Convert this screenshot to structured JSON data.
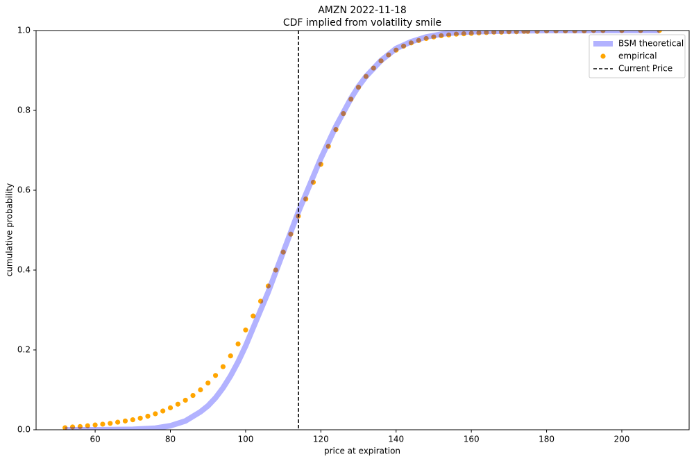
{
  "chart_data": {
    "type": "line",
    "title": "AMZN 2022-11-18",
    "subtitle": "CDF implied from volatility smile",
    "xlabel": "price at expiration",
    "ylabel": "cumulative probability",
    "xlim": [
      44.3,
      217.9
    ],
    "ylim": [
      0,
      1.0
    ],
    "xticks": [
      60,
      80,
      100,
      120,
      140,
      160,
      180,
      200
    ],
    "yticks": [
      {
        "value": 0,
        "label": "0.0"
      },
      0.2,
      0.4,
      0.6,
      0.8,
      {
        "value": 1.0,
        "label": "1.0"
      }
    ],
    "legend": "upper right",
    "series": [
      {
        "name": "empirical",
        "type": "scatter",
        "color": "orange",
        "x": [
          52,
          54,
          56,
          58,
          60,
          62,
          64,
          66,
          68,
          70,
          72,
          74,
          76,
          78,
          80,
          82,
          84,
          86,
          88,
          90,
          92,
          94,
          96,
          98,
          100,
          102,
          104,
          106,
          108,
          110,
          112,
          114,
          116,
          118,
          120,
          122,
          124,
          126,
          128,
          130,
          132,
          134,
          136,
          138,
          140,
          142,
          144,
          146,
          148,
          150,
          152,
          154,
          156,
          158,
          160,
          162,
          164,
          166,
          168,
          170,
          172,
          174,
          175,
          177.5,
          180,
          182.5,
          185,
          187.5,
          190,
          192.5,
          195,
          200,
          205,
          210
        ],
        "values": [
          0.005,
          0.007,
          0.008,
          0.01,
          0.012,
          0.014,
          0.016,
          0.019,
          0.022,
          0.025,
          0.029,
          0.034,
          0.04,
          0.047,
          0.055,
          0.064,
          0.074,
          0.086,
          0.1,
          0.117,
          0.136,
          0.158,
          0.185,
          0.215,
          0.25,
          0.285,
          0.322,
          0.36,
          0.4,
          0.445,
          0.49,
          0.535,
          0.578,
          0.62,
          0.665,
          0.71,
          0.752,
          0.792,
          0.828,
          0.858,
          0.885,
          0.906,
          0.924,
          0.939,
          0.951,
          0.961,
          0.969,
          0.975,
          0.98,
          0.984,
          0.987,
          0.989,
          0.991,
          0.992,
          0.993,
          0.994,
          0.995,
          0.996,
          0.996,
          0.997,
          0.997,
          0.998,
          0.998,
          0.998,
          0.999,
          0.999,
          0.999,
          0.999,
          0.999,
          1.0,
          1.0,
          1.0,
          1.0,
          1.0
        ]
      },
      {
        "name": "BSM theoretical",
        "type": "line",
        "color": "blue",
        "opacity": 0.3,
        "x": [
          52,
          60,
          70,
          76,
          80,
          84,
          88,
          90,
          92,
          94,
          96,
          98,
          100,
          102,
          104,
          106,
          108,
          110,
          112,
          114,
          116,
          118,
          120,
          122,
          124,
          126,
          128,
          130,
          132,
          134,
          136,
          138,
          140,
          144,
          148,
          152,
          156,
          160,
          170,
          180,
          190,
          210
        ],
        "values": [
          0,
          0,
          0.001,
          0.004,
          0.01,
          0.022,
          0.045,
          0.06,
          0.08,
          0.105,
          0.135,
          0.17,
          0.21,
          0.255,
          0.3,
          0.345,
          0.395,
          0.445,
          0.495,
          0.545,
          0.59,
          0.635,
          0.68,
          0.72,
          0.76,
          0.795,
          0.83,
          0.86,
          0.885,
          0.905,
          0.925,
          0.94,
          0.955,
          0.972,
          0.984,
          0.991,
          0.995,
          0.997,
          0.999,
          1.0,
          1.0,
          1.0
        ]
      }
    ],
    "vlines": [
      {
        "name": "Current Price",
        "x": 114.05,
        "color": "black",
        "dash": true
      }
    ]
  }
}
